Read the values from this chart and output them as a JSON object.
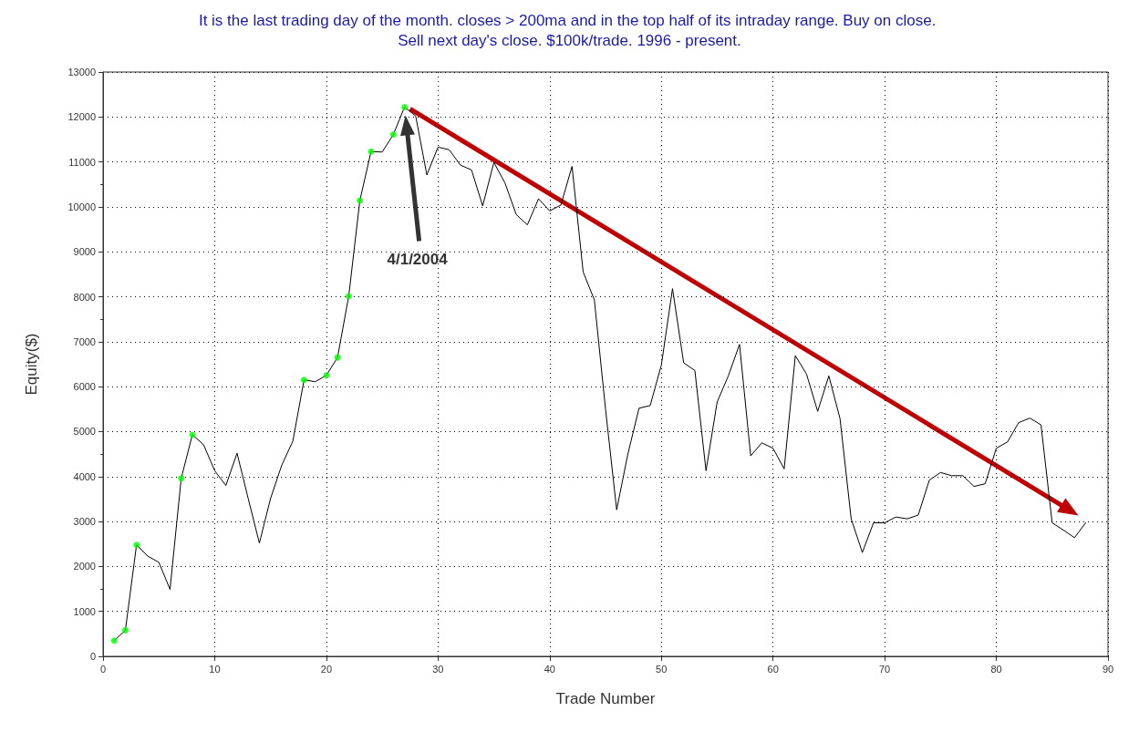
{
  "chart_data": {
    "type": "line",
    "title": "It is the last trading day of the month. closes > 200ma and in the top half of its intraday range. Buy on close. Sell next day's close. $100k/trade. 1996 - present.",
    "xlabel": "Trade Number",
    "ylabel": "Equity($)",
    "xlim": [
      0,
      90
    ],
    "xticks": [
      0,
      10,
      20,
      30,
      40,
      50,
      60,
      70,
      80,
      90
    ],
    "ylim": [
      0,
      13000
    ],
    "yticks": [
      0,
      1000,
      2000,
      3000,
      4000,
      5000,
      6000,
      7000,
      8000,
      9000,
      10000,
      11000,
      12000,
      13000
    ],
    "grid": true,
    "line_style": "solid",
    "annotations": [
      "4/1/2004"
    ],
    "series": [
      {
        "color": "#000000",
        "marker": "none",
        "x": [
          1,
          2,
          3,
          4,
          5,
          6,
          7,
          8,
          9,
          10,
          11,
          12,
          13,
          14,
          15,
          16,
          17,
          18,
          19,
          20,
          21,
          22,
          23,
          24,
          25,
          26,
          27,
          28,
          29,
          30,
          31,
          32,
          33,
          34,
          35,
          36,
          37,
          38,
          39,
          40,
          41,
          42,
          43,
          44,
          45,
          46,
          47,
          48,
          49,
          50,
          51,
          52,
          53,
          54,
          55,
          56,
          57,
          58,
          59,
          60,
          61,
          62,
          63,
          64,
          65,
          66,
          67,
          68,
          69,
          70,
          71,
          72,
          73,
          74,
          75,
          76,
          77,
          78,
          79,
          80,
          81,
          82,
          83,
          84,
          85,
          86,
          87,
          88
        ],
        "values": [
          350,
          580,
          2480,
          2230,
          2090,
          1490,
          3960,
          4930,
          4710,
          4130,
          3800,
          4520,
          3510,
          2520,
          3510,
          4250,
          4790,
          6150,
          6110,
          6250,
          6650,
          8010,
          10140,
          11230,
          11220,
          11610,
          12220,
          12020,
          10710,
          11330,
          11270,
          10930,
          10820,
          10020,
          10990,
          10530,
          9830,
          9600,
          10180,
          9910,
          10040,
          10900,
          8550,
          7930,
          5500,
          3260,
          4500,
          5520,
          5580,
          6480,
          8180,
          6530,
          6360,
          4130,
          5660,
          6240,
          6940,
          4460,
          4750,
          4630,
          4170,
          6690,
          6280,
          5450,
          6240,
          5290,
          3060,
          2310,
          2970,
          2970,
          3100,
          3060,
          3140,
          3920,
          4090,
          4020,
          4020,
          3780,
          3840,
          4630,
          4770,
          5200,
          5300,
          5150,
          2970,
          2810,
          2640,
          2970
        ]
      },
      {
        "type": "scatter",
        "color": "#00ff00",
        "marker": "circle",
        "x": [
          1,
          2,
          3,
          7,
          8,
          18,
          20,
          21,
          22,
          23,
          24,
          26,
          27
        ],
        "values": [
          350,
          580,
          2480,
          3960,
          4930,
          6150,
          6250,
          6650,
          8010,
          10140,
          11230,
          11610,
          12220
        ]
      }
    ]
  }
}
